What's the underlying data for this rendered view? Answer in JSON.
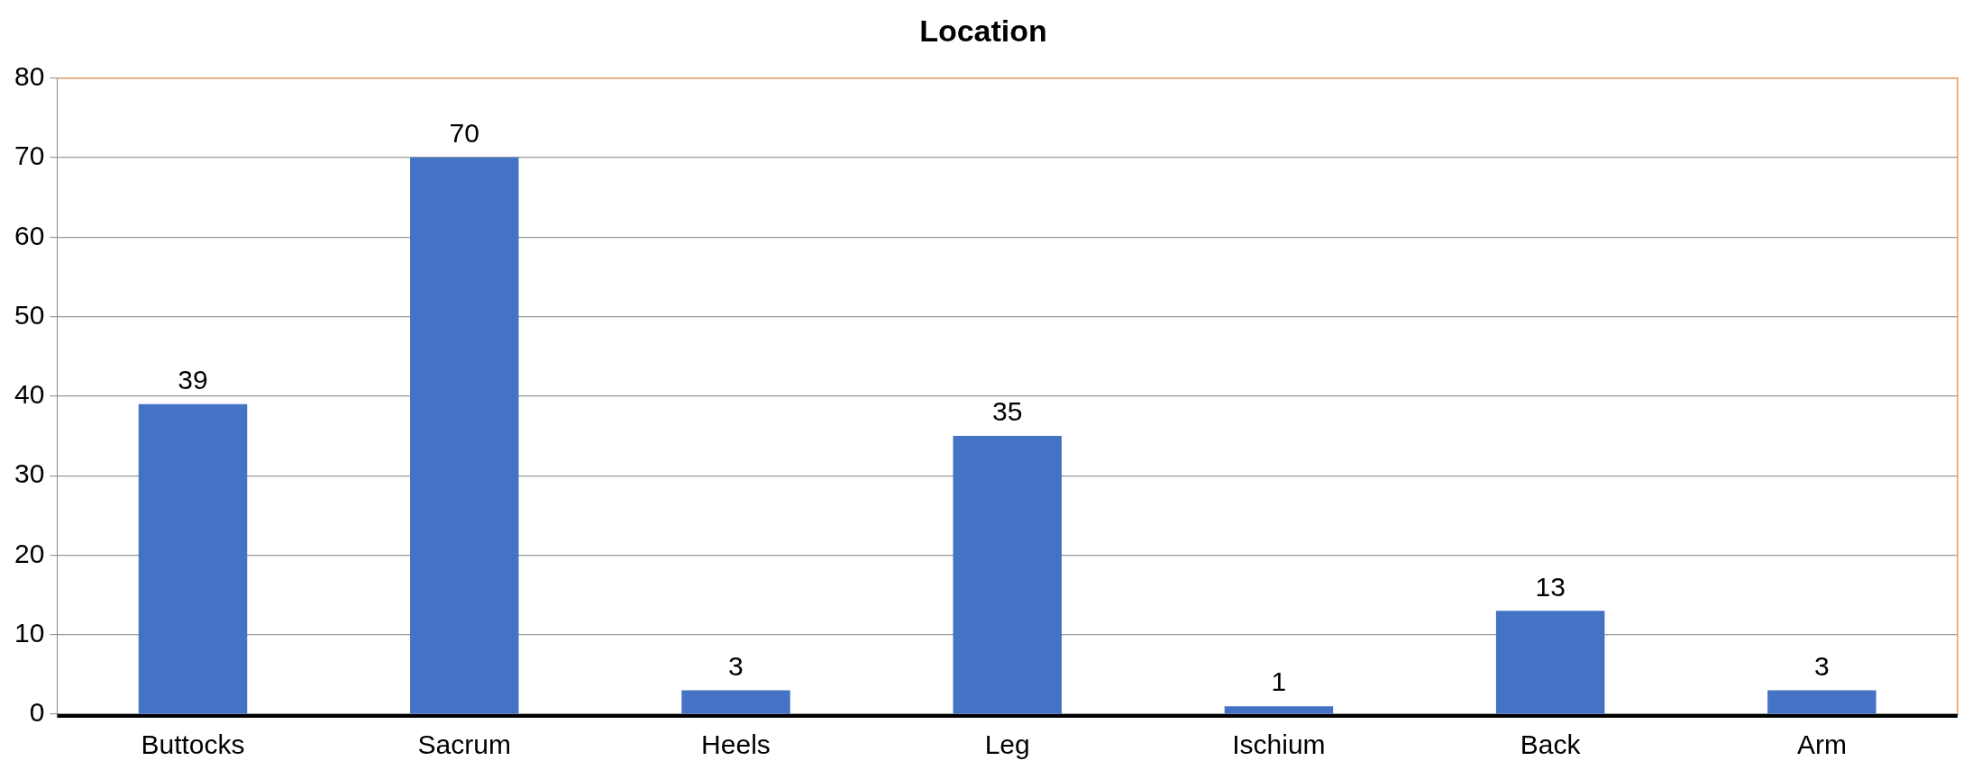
{
  "chart_data": {
    "type": "bar",
    "title": "Location",
    "categories": [
      "Buttocks",
      "Sacrum",
      "Heels",
      "Leg",
      "Ischium",
      "Back",
      "Arm"
    ],
    "values": [
      39,
      70,
      3,
      35,
      1,
      13,
      3
    ],
    "color": "#4472c4",
    "ylim": [
      0,
      80
    ],
    "yticks": [
      0,
      10,
      20,
      30,
      40,
      50,
      60,
      70,
      80
    ],
    "grid": "y",
    "legend": false,
    "data_labels": true
  }
}
